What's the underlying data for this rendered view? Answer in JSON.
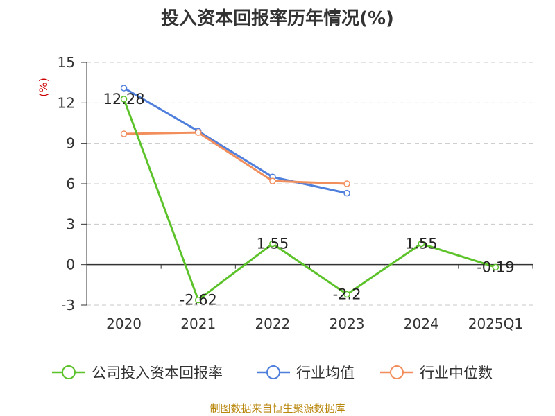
{
  "title": "投入资本回报率历年情况(%)",
  "source": "制图数据来自恒生聚源数据库",
  "chart_data": {
    "type": "line",
    "title": "投入资本回报率历年情况(%)",
    "ylabel": "(%)",
    "xlabel": "",
    "categories": [
      "2020",
      "2021",
      "2022",
      "2023",
      "2024",
      "2025Q1"
    ],
    "ylim": [
      -3,
      15
    ],
    "yticks": [
      15,
      12,
      9,
      6,
      3,
      0,
      -3
    ],
    "grid": true,
    "legend_position": "bottom",
    "series": [
      {
        "name": "公司投入资本回报率",
        "color": "#5cc22a",
        "values": [
          12.28,
          -2.62,
          1.55,
          -2.2,
          1.55,
          -0.19
        ],
        "labels": [
          "12.28",
          "-2.62",
          "1.55",
          "-2.2",
          "1.55",
          "-0.19"
        ]
      },
      {
        "name": "行业均值",
        "color": "#4f7fdc",
        "values": [
          13.1,
          9.9,
          6.5,
          5.3,
          null,
          null
        ]
      },
      {
        "name": "行业中位数",
        "color": "#f28e5b",
        "values": [
          9.7,
          9.8,
          6.2,
          6.0,
          null,
          null
        ]
      }
    ]
  }
}
